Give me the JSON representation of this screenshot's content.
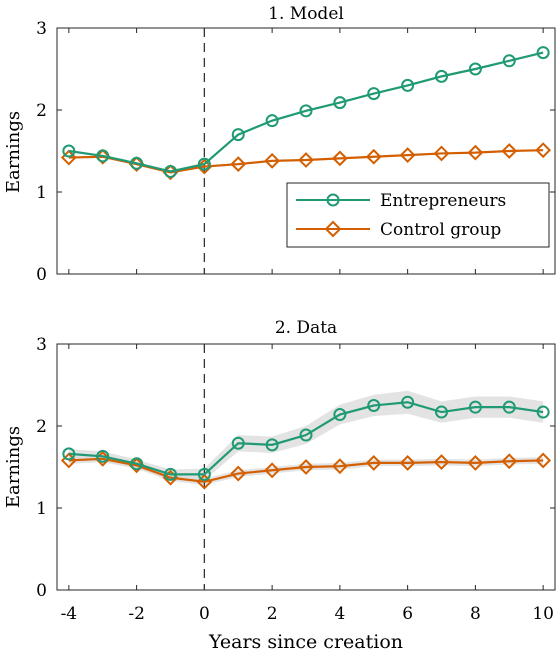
{
  "colors": {
    "entrepreneurs": "#1f9a74",
    "control": "#d45f00",
    "band": "#d9d9d9",
    "axis": "#262626"
  },
  "chart_data": [
    {
      "type": "line",
      "title": "1. Model",
      "xlabel": "",
      "ylabel": "Earnings",
      "xlim": [
        -4.35,
        10.35
      ],
      "ylim": [
        0,
        3
      ],
      "xticks": [
        -4,
        -2,
        0,
        2,
        4,
        6,
        8,
        10
      ],
      "yticks": [
        0,
        1,
        2,
        3
      ],
      "x": [
        -4,
        -3,
        -2,
        -1,
        0,
        1,
        2,
        3,
        4,
        5,
        6,
        7,
        8,
        9,
        10
      ],
      "vline_x": 0,
      "legend": "inside-lower-right",
      "series": [
        {
          "name": "Entrepreneurs",
          "marker": "circle",
          "values": [
            1.5,
            1.44,
            1.35,
            1.25,
            1.34,
            1.7,
            1.87,
            1.99,
            2.09,
            2.2,
            2.3,
            2.41,
            2.5,
            2.6,
            2.7
          ]
        },
        {
          "name": "Control group",
          "marker": "diamond",
          "values": [
            1.42,
            1.43,
            1.34,
            1.24,
            1.31,
            1.34,
            1.38,
            1.39,
            1.41,
            1.43,
            1.45,
            1.47,
            1.48,
            1.5,
            1.51
          ]
        }
      ]
    },
    {
      "type": "line",
      "title": "2. Data",
      "xlabel": "Years since creation",
      "ylabel": "Earnings",
      "xlim": [
        -4.35,
        10.35
      ],
      "ylim": [
        0,
        3
      ],
      "xticks": [
        -4,
        -2,
        0,
        2,
        4,
        6,
        8,
        10
      ],
      "yticks": [
        0,
        1,
        2,
        3
      ],
      "x": [
        -4,
        -3,
        -2,
        -1,
        0,
        1,
        2,
        3,
        4,
        5,
        6,
        7,
        8,
        9,
        10
      ],
      "vline_x": 0,
      "bands": true,
      "series": [
        {
          "name": "Entrepreneurs",
          "marker": "circle",
          "values": [
            1.66,
            1.63,
            1.54,
            1.41,
            1.41,
            1.79,
            1.77,
            1.89,
            2.14,
            2.25,
            2.29,
            2.17,
            2.23,
            2.23,
            2.17
          ],
          "lower": [
            1.6,
            1.57,
            1.49,
            1.35,
            1.34,
            1.69,
            1.67,
            1.78,
            2.02,
            2.12,
            2.15,
            2.04,
            2.1,
            2.1,
            2.04
          ],
          "upper": [
            1.72,
            1.69,
            1.59,
            1.47,
            1.48,
            1.89,
            1.87,
            2.0,
            2.26,
            2.38,
            2.43,
            2.3,
            2.36,
            2.36,
            2.3
          ]
        },
        {
          "name": "Control group",
          "marker": "diamond",
          "values": [
            1.58,
            1.6,
            1.52,
            1.37,
            1.32,
            1.42,
            1.46,
            1.5,
            1.51,
            1.55,
            1.55,
            1.56,
            1.55,
            1.57,
            1.58
          ],
          "lower": [
            1.54,
            1.56,
            1.48,
            1.33,
            1.28,
            1.38,
            1.42,
            1.46,
            1.47,
            1.51,
            1.51,
            1.52,
            1.51,
            1.53,
            1.54
          ],
          "upper": [
            1.62,
            1.64,
            1.56,
            1.41,
            1.36,
            1.46,
            1.5,
            1.54,
            1.55,
            1.59,
            1.59,
            1.6,
            1.59,
            1.61,
            1.62
          ]
        }
      ]
    }
  ]
}
